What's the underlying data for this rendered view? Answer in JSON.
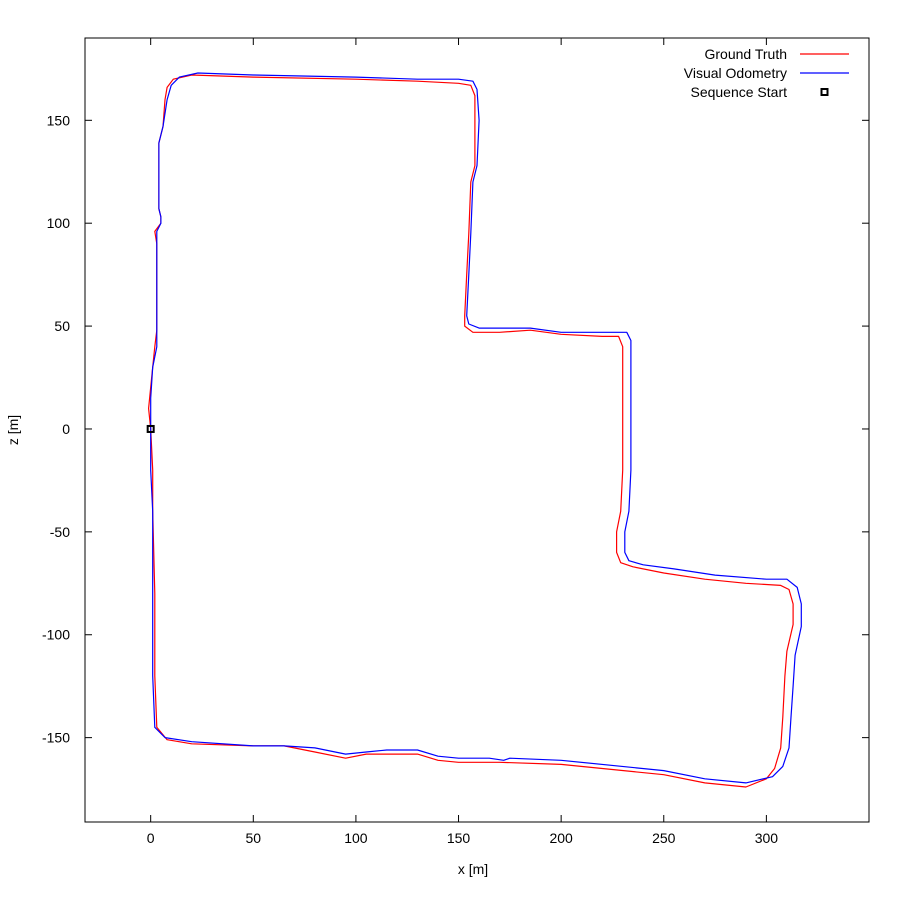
{
  "chart_data": {
    "type": "line",
    "title": "",
    "xlabel": "x [m]",
    "ylabel": "z [m]",
    "xlim": [
      -32,
      350
    ],
    "ylim": [
      -191,
      190
    ],
    "x_ticks": [
      0,
      50,
      100,
      150,
      200,
      250,
      300
    ],
    "y_ticks": [
      150,
      100,
      50,
      0,
      -50,
      -100,
      -150
    ],
    "grid": false,
    "legend_position": "top-right",
    "series": [
      {
        "name": "Ground Truth",
        "color": "#ff0000",
        "points": [
          [
            0,
            0
          ],
          [
            -1,
            10
          ],
          [
            1,
            30
          ],
          [
            2,
            40
          ],
          [
            3,
            48
          ],
          [
            3,
            70
          ],
          [
            3,
            90
          ],
          [
            2,
            96
          ],
          [
            5,
            100
          ],
          [
            5,
            103
          ],
          [
            4,
            107
          ],
          [
            4,
            120
          ],
          [
            4,
            139
          ],
          [
            6,
            147
          ],
          [
            7,
            160
          ],
          [
            8,
            166
          ],
          [
            11,
            170
          ],
          [
            20,
            172
          ],
          [
            50,
            171
          ],
          [
            100,
            170
          ],
          [
            130,
            169
          ],
          [
            150,
            168
          ],
          [
            156,
            167
          ],
          [
            158,
            162
          ],
          [
            158,
            150
          ],
          [
            158,
            128
          ],
          [
            156,
            120
          ],
          [
            155,
            95
          ],
          [
            154,
            75
          ],
          [
            153,
            55
          ],
          [
            153,
            50
          ],
          [
            157,
            47
          ],
          [
            160,
            47
          ],
          [
            170,
            47
          ],
          [
            185,
            48
          ],
          [
            200,
            46
          ],
          [
            220,
            45
          ],
          [
            228,
            45
          ],
          [
            230,
            40
          ],
          [
            230,
            20
          ],
          [
            230,
            0
          ],
          [
            230,
            -20
          ],
          [
            229,
            -40
          ],
          [
            227,
            -50
          ],
          [
            227,
            -60
          ],
          [
            229,
            -65
          ],
          [
            235,
            -67
          ],
          [
            250,
            -70
          ],
          [
            270,
            -73
          ],
          [
            290,
            -75
          ],
          [
            307,
            -76
          ],
          [
            311,
            -78
          ],
          [
            313,
            -85
          ],
          [
            313,
            -95
          ],
          [
            310,
            -108
          ],
          [
            309,
            -120
          ],
          [
            308,
            -140
          ],
          [
            307,
            -155
          ],
          [
            304,
            -165
          ],
          [
            300,
            -170
          ],
          [
            290,
            -174
          ],
          [
            270,
            -172
          ],
          [
            250,
            -168
          ],
          [
            200,
            -163
          ],
          [
            170,
            -162
          ],
          [
            166,
            -162
          ],
          [
            160,
            -162
          ],
          [
            150,
            -162
          ],
          [
            140,
            -161
          ],
          [
            130,
            -158
          ],
          [
            125,
            -158
          ],
          [
            115,
            -158
          ],
          [
            105,
            -158
          ],
          [
            95,
            -160
          ],
          [
            80,
            -157
          ],
          [
            65,
            -154
          ],
          [
            50,
            -154
          ],
          [
            20,
            -153
          ],
          [
            8,
            -151
          ],
          [
            3,
            -145
          ],
          [
            2,
            -120
          ],
          [
            2,
            -80
          ],
          [
            1,
            -40
          ],
          [
            1,
            -20
          ],
          [
            0,
            0
          ]
        ]
      },
      {
        "name": "Visual Odometry",
        "color": "#0000ff",
        "points": [
          [
            0,
            0
          ],
          [
            0,
            15
          ],
          [
            1,
            30
          ],
          [
            3,
            40
          ],
          [
            3,
            48
          ],
          [
            3,
            70
          ],
          [
            3,
            90
          ],
          [
            3,
            96
          ],
          [
            5,
            100
          ],
          [
            5,
            103
          ],
          [
            4,
            107
          ],
          [
            4,
            120
          ],
          [
            4,
            139
          ],
          [
            6,
            147
          ],
          [
            8,
            160
          ],
          [
            10,
            167
          ],
          [
            14,
            171
          ],
          [
            23,
            173
          ],
          [
            50,
            172
          ],
          [
            100,
            171
          ],
          [
            130,
            170
          ],
          [
            150,
            170
          ],
          [
            157,
            169
          ],
          [
            159,
            165
          ],
          [
            160,
            150
          ],
          [
            159,
            128
          ],
          [
            157,
            120
          ],
          [
            156,
            95
          ],
          [
            155,
            75
          ],
          [
            154,
            55
          ],
          [
            155,
            51
          ],
          [
            160,
            49
          ],
          [
            170,
            49
          ],
          [
            185,
            49
          ],
          [
            200,
            47
          ],
          [
            225,
            47
          ],
          [
            232,
            47
          ],
          [
            234,
            43
          ],
          [
            234,
            20
          ],
          [
            234,
            0
          ],
          [
            234,
            -20
          ],
          [
            233,
            -40
          ],
          [
            231,
            -50
          ],
          [
            231,
            -60
          ],
          [
            233,
            -64
          ],
          [
            240,
            -66
          ],
          [
            255,
            -68
          ],
          [
            275,
            -71
          ],
          [
            300,
            -73
          ],
          [
            310,
            -73
          ],
          [
            315,
            -77
          ],
          [
            317,
            -85
          ],
          [
            317,
            -96
          ],
          [
            314,
            -110
          ],
          [
            313,
            -125
          ],
          [
            312,
            -140
          ],
          [
            311,
            -155
          ],
          [
            308,
            -164
          ],
          [
            303,
            -169
          ],
          [
            290,
            -172
          ],
          [
            270,
            -170
          ],
          [
            250,
            -166
          ],
          [
            200,
            -161
          ],
          [
            175,
            -160
          ],
          [
            172,
            -161
          ],
          [
            165,
            -160
          ],
          [
            150,
            -160
          ],
          [
            140,
            -159
          ],
          [
            130,
            -156
          ],
          [
            125,
            -156
          ],
          [
            115,
            -156
          ],
          [
            105,
            -157
          ],
          [
            95,
            -158
          ],
          [
            80,
            -155
          ],
          [
            65,
            -154
          ],
          [
            50,
            -154
          ],
          [
            20,
            -152
          ],
          [
            7,
            -150
          ],
          [
            2,
            -145
          ],
          [
            1,
            -120
          ],
          [
            1,
            -80
          ],
          [
            1,
            -40
          ],
          [
            0,
            -20
          ],
          [
            0,
            0
          ]
        ]
      }
    ],
    "markers": [
      {
        "name": "Sequence Start",
        "x": 0,
        "y": 0,
        "shape": "square",
        "color": "#000000"
      }
    ]
  }
}
